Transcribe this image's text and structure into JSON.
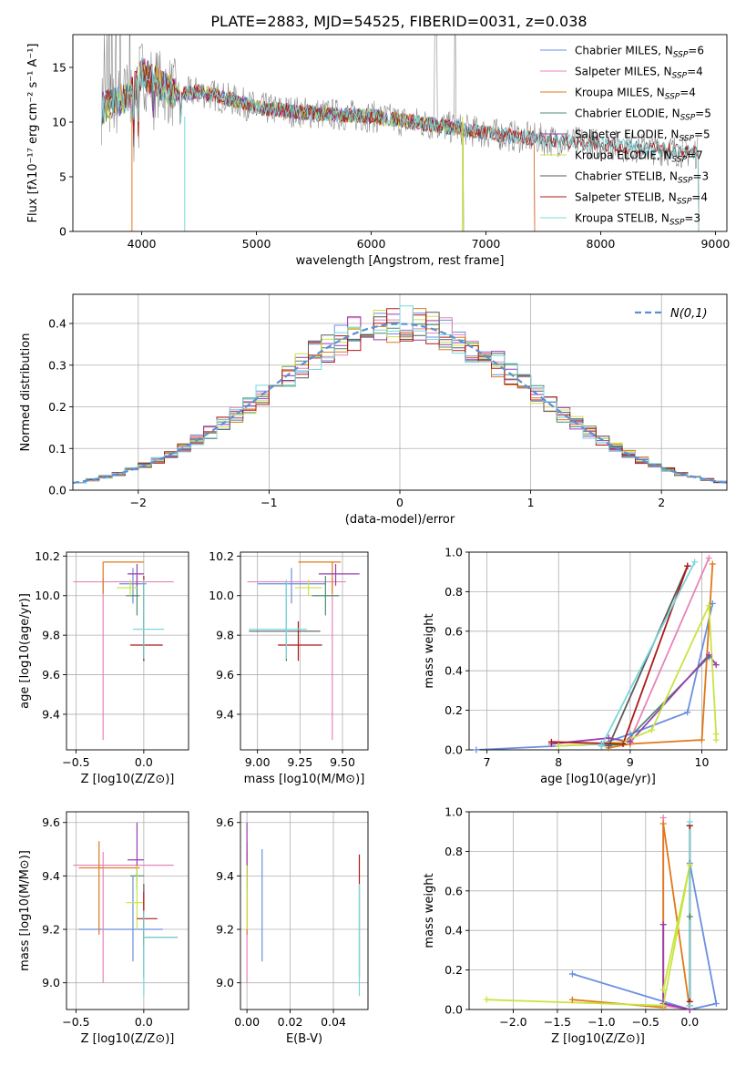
{
  "title": "PLATE=2883, MJD=54525, FIBERID=0031, z=0.038",
  "colors": {
    "Chabrier MILES": "#6b8fe0",
    "Salpeter MILES": "#e884b8",
    "Kroupa MILES": "#e07818",
    "Chabrier ELODIE": "#4c8c6c",
    "Salpeter ELODIE": "#9a3cb0",
    "Kroupa ELODIE": "#c8e440",
    "Chabrier STELIB": "#5a5a5a",
    "Salpeter STELIB": "#b01818",
    "Kroupa STELIB": "#78d8dc",
    "data": "#888888",
    "gaussian": "#5b8fd8",
    "grid": "#b0b0b0"
  },
  "chart_data": [
    {
      "id": "spectrum",
      "type": "line",
      "title": "PLATE=2883, MJD=54525, FIBERID=0031, z=0.038",
      "xlabel": "wavelength [Angstrom, rest frame]",
      "ylabel": "Flux [fλ10⁻¹⁷ erg cm⁻² s⁻¹ A⁻¹]",
      "xlim": [
        3400,
        9100
      ],
      "ylim": [
        0,
        18
      ],
      "xticks": [
        4000,
        5000,
        6000,
        7000,
        8000,
        9000
      ],
      "yticks": [
        0,
        5,
        10,
        15
      ],
      "grid": false,
      "legend_position": "top-right",
      "legend": [
        {
          "name": "Chabrier MILES",
          "nssp": "6"
        },
        {
          "name": "Salpeter MILES",
          "nssp": "4"
        },
        {
          "name": "Kroupa MILES",
          "nssp": "4"
        },
        {
          "name": "Chabrier ELODIE",
          "nssp": "5"
        },
        {
          "name": "Salpeter ELODIE",
          "nssp": "5"
        },
        {
          "name": "Kroupa ELODIE",
          "nssp": "7"
        },
        {
          "name": "Chabrier STELIB",
          "nssp": "3"
        },
        {
          "name": "Salpeter STELIB",
          "nssp": "4"
        },
        {
          "name": "Kroupa STELIB",
          "nssp": "3"
        }
      ],
      "continuum": [
        [
          3650,
          11.2
        ],
        [
          3900,
          12.5
        ],
        [
          4000,
          14.5
        ],
        [
          4100,
          13.8
        ],
        [
          4300,
          12.5
        ],
        [
          4500,
          12.8
        ],
        [
          4800,
          12.0
        ],
        [
          5000,
          11.3
        ],
        [
          5500,
          10.8
        ],
        [
          6000,
          10.5
        ],
        [
          6500,
          9.8
        ],
        [
          7000,
          9.0
        ],
        [
          7500,
          8.4
        ],
        [
          8000,
          8.0
        ],
        [
          8500,
          7.5
        ],
        [
          8850,
          7.2
        ]
      ],
      "model_ranges": {
        "Chabrier MILES": [
          3650,
          7420
        ],
        "Salpeter MILES": [
          3650,
          7420
        ],
        "Kroupa MILES": [
          3650,
          7420
        ],
        "Chabrier ELODIE": [
          3650,
          6800
        ],
        "Salpeter ELODIE": [
          3650,
          6800
        ],
        "Kroupa ELODIE": [
          3650,
          6800
        ],
        "Chabrier STELIB": [
          3650,
          8850
        ],
        "Salpeter STELIB": [
          3650,
          8850
        ],
        "Kroupa STELIB": [
          3650,
          8850
        ]
      }
    },
    {
      "id": "residuals",
      "type": "bar",
      "xlabel": "(data-model)/error",
      "ylabel": "Normed distribution",
      "xlim": [
        -2.5,
        2.5
      ],
      "ylim": [
        0,
        0.47
      ],
      "xticks": [
        -2,
        -1,
        0,
        1,
        2
      ],
      "yticks": [
        0.0,
        0.1,
        0.2,
        0.3,
        0.4
      ],
      "grid": true,
      "legend_position": "top-right",
      "legend": [
        {
          "name": "N(0,1)"
        }
      ],
      "bin_width": 0.1
    },
    {
      "id": "age_vs_Z",
      "type": "scatter",
      "xlabel": "Z [log10(Z/Z⊙)]",
      "ylabel": "age  [log10(age/yr)]",
      "xlim": [
        -0.57,
        0.33
      ],
      "ylim": [
        9.22,
        10.22
      ],
      "xticks": [
        -0.5,
        0.0
      ],
      "yticks": [
        9.4,
        9.6,
        9.8,
        10.0,
        10.2
      ],
      "grid": true,
      "points": [
        {
          "model": "Chabrier MILES",
          "x": -0.08,
          "y": 10.06,
          "xerr": [
            0.1,
            0.1
          ],
          "yerr": [
            0.1,
            0.08
          ]
        },
        {
          "model": "Salpeter MILES",
          "x": -0.3,
          "y": 10.07,
          "xerr": [
            0.22,
            0.52
          ],
          "yerr": [
            0.8,
            0.02
          ]
        },
        {
          "model": "Kroupa MILES",
          "x": -0.3,
          "y": 10.17,
          "xerr": [
            0.0,
            0.3
          ],
          "yerr": [
            0.16,
            0.0
          ]
        },
        {
          "model": "Chabrier ELODIE",
          "x": -0.05,
          "y": 10.0,
          "xerr": [
            0.08,
            0.02
          ],
          "yerr": [
            0.1,
            0.1
          ]
        },
        {
          "model": "Salpeter ELODIE",
          "x": -0.05,
          "y": 10.11,
          "xerr": [
            0.07,
            0.05
          ],
          "yerr": [
            0.06,
            0.05
          ]
        },
        {
          "model": "Kroupa ELODIE",
          "x": -0.1,
          "y": 10.04,
          "xerr": [
            0.1,
            0.05
          ],
          "yerr": [
            0.04,
            0.04
          ]
        },
        {
          "model": "Chabrier STELIB",
          "x": 0.0,
          "y": 9.82,
          "xerr": [
            0.0,
            0.0
          ],
          "yerr": [
            0.15,
            0.25
          ]
        },
        {
          "model": "Salpeter STELIB",
          "x": 0.0,
          "y": 9.75,
          "xerr": [
            0.1,
            0.14
          ],
          "yerr": [
            0.08,
            0.35
          ]
        },
        {
          "model": "Kroupa STELIB",
          "x": 0.0,
          "y": 9.83,
          "xerr": [
            0.08,
            0.15
          ],
          "yerr": [
            0.15,
            0.25
          ]
        }
      ]
    },
    {
      "id": "age_vs_mass",
      "type": "scatter",
      "xlabel": "mass [log10(M/M⊙)]",
      "ylabel": "",
      "xlim": [
        8.9,
        9.65
      ],
      "ylim": [
        9.22,
        10.22
      ],
      "xticks": [
        9.0,
        9.25,
        9.5
      ],
      "yticks": [
        9.4,
        9.6,
        9.8,
        10.0,
        10.2
      ],
      "grid": true,
      "points": [
        {
          "model": "Chabrier MILES",
          "x": 9.2,
          "y": 10.06,
          "xerr": [
            0.2,
            0.2
          ],
          "yerr": [
            0.1,
            0.08
          ]
        },
        {
          "model": "Salpeter MILES",
          "x": 9.44,
          "y": 10.07,
          "xerr": [
            0.5,
            0.08
          ],
          "yerr": [
            0.8,
            0.02
          ]
        },
        {
          "model": "Kroupa MILES",
          "x": 9.44,
          "y": 10.17,
          "xerr": [
            0.2,
            0.05
          ],
          "yerr": [
            0.16,
            0.0
          ]
        },
        {
          "model": "Chabrier ELODIE",
          "x": 9.4,
          "y": 10.0,
          "xerr": [
            0.08,
            0.08
          ],
          "yerr": [
            0.1,
            0.1
          ]
        },
        {
          "model": "Salpeter ELODIE",
          "x": 9.46,
          "y": 10.11,
          "xerr": [
            0.1,
            0.14
          ],
          "yerr": [
            0.06,
            0.05
          ]
        },
        {
          "model": "Kroupa ELODIE",
          "x": 9.3,
          "y": 10.04,
          "xerr": [
            0.08,
            0.08
          ],
          "yerr": [
            0.04,
            0.04
          ]
        },
        {
          "model": "Chabrier STELIB",
          "x": 9.17,
          "y": 9.82,
          "xerr": [
            0.22,
            0.2
          ],
          "yerr": [
            0.15,
            0.25
          ]
        },
        {
          "model": "Salpeter STELIB",
          "x": 9.24,
          "y": 9.75,
          "xerr": [
            0.12,
            0.14
          ],
          "yerr": [
            0.08,
            0.12
          ]
        },
        {
          "model": "Kroupa STELIB",
          "x": 9.17,
          "y": 9.83,
          "xerr": [
            0.22,
            0.12
          ],
          "yerr": [
            0.15,
            0.25
          ]
        }
      ]
    },
    {
      "id": "mass_weight_vs_age",
      "type": "line",
      "xlabel": "age  [log10(age/yr)]",
      "ylabel": "mass weight",
      "xlim": [
        6.75,
        10.35
      ],
      "ylim": [
        0,
        1.0
      ],
      "xticks": [
        7,
        8,
        9,
        10
      ],
      "yticks": [
        0.0,
        0.2,
        0.4,
        0.6,
        0.8,
        1.0
      ],
      "grid": true,
      "series": [
        {
          "model": "Chabrier MILES",
          "x": [
            6.85,
            8.6,
            9.0,
            9.8,
            10.15
          ],
          "y": [
            0.0,
            0.03,
            0.08,
            0.19,
            0.74
          ]
        },
        {
          "model": "Salpeter MILES",
          "x": [
            8.6,
            9.0,
            10.1
          ],
          "y": [
            0.02,
            0.05,
            0.97
          ]
        },
        {
          "model": "Kroupa MILES",
          "x": [
            8.7,
            9.0,
            10.0,
            10.15
          ],
          "y": [
            0.01,
            0.03,
            0.05,
            0.94
          ]
        },
        {
          "model": "Chabrier ELODIE",
          "x": [
            8.6,
            8.9,
            10.1
          ],
          "y": [
            0.02,
            0.03,
            0.47
          ]
        },
        {
          "model": "Salpeter ELODIE",
          "x": [
            7.9,
            8.7,
            9.0,
            10.1,
            10.2
          ],
          "y": [
            0.03,
            0.06,
            0.04,
            0.48,
            0.43
          ]
        },
        {
          "model": "Kroupa ELODIE",
          "x": [
            8.0,
            8.9,
            9.3,
            10.1,
            10.2,
            10.2
          ],
          "y": [
            0.02,
            0.04,
            0.1,
            0.73,
            0.08,
            0.05
          ]
        },
        {
          "model": "Chabrier STELIB",
          "x": [
            8.7,
            9.8
          ],
          "y": [
            0.02,
            0.93
          ]
        },
        {
          "model": "Salpeter STELIB",
          "x": [
            7.9,
            8.9,
            9.8
          ],
          "y": [
            0.04,
            0.03,
            0.93
          ]
        },
        {
          "model": "Kroupa STELIB",
          "x": [
            8.6,
            9.9
          ],
          "y": [
            0.02,
            0.95
          ]
        }
      ]
    },
    {
      "id": "mass_vs_Z",
      "type": "scatter",
      "xlabel": "Z [log10(Z/Z⊙)]",
      "ylabel": "mass [log10(M/M⊙)]",
      "xlim": [
        -0.57,
        0.33
      ],
      "ylim": [
        8.9,
        9.64
      ],
      "xticks": [
        -0.5,
        0.0
      ],
      "yticks": [
        9.0,
        9.2,
        9.4,
        9.6
      ],
      "grid": true,
      "points": [
        {
          "model": "Chabrier MILES",
          "x": -0.08,
          "y": 9.2,
          "xerr": [
            0.4,
            0.22
          ],
          "yerr": [
            0.12,
            0.2
          ]
        },
        {
          "model": "Salpeter MILES",
          "x": -0.3,
          "y": 9.44,
          "xerr": [
            0.22,
            0.52
          ],
          "yerr": [
            0.44,
            0.05
          ]
        },
        {
          "model": "Kroupa MILES",
          "x": -0.33,
          "y": 9.43,
          "xerr": [
            0.15,
            0.3
          ],
          "yerr": [
            0.25,
            0.1
          ]
        },
        {
          "model": "Chabrier ELODIE",
          "x": -0.05,
          "y": 9.4,
          "xerr": [
            0.05,
            0.05
          ],
          "yerr": [
            0.05,
            0.05
          ]
        },
        {
          "model": "Salpeter ELODIE",
          "x": -0.05,
          "y": 9.46,
          "xerr": [
            0.07,
            0.05
          ],
          "yerr": [
            0.08,
            0.14
          ]
        },
        {
          "model": "Kroupa ELODIE",
          "x": -0.05,
          "y": 9.3,
          "xerr": [
            0.08,
            0.05
          ],
          "yerr": [
            0.1,
            0.14
          ]
        },
        {
          "model": "Chabrier STELIB",
          "x": 0.0,
          "y": 9.17,
          "xerr": [
            0.0,
            0.25
          ],
          "yerr": [
            0.15,
            0.2
          ]
        },
        {
          "model": "Salpeter STELIB",
          "x": 0.0,
          "y": 9.24,
          "xerr": [
            0.05,
            0.1
          ],
          "yerr": [
            0.1,
            0.1
          ]
        },
        {
          "model": "Kroupa STELIB",
          "x": 0.0,
          "y": 9.17,
          "xerr": [
            0.0,
            0.25
          ],
          "yerr": [
            0.22,
            0.1
          ]
        }
      ]
    },
    {
      "id": "mass_vs_EBV",
      "type": "scatter",
      "xlabel": "E(B-V)",
      "ylabel": "",
      "xlim": [
        -0.003,
        0.056
      ],
      "ylim": [
        8.9,
        9.64
      ],
      "xticks": [
        0.0,
        0.02,
        0.04
      ],
      "yticks": [
        9.0,
        9.2,
        9.4,
        9.6
      ],
      "grid": true,
      "points": [
        {
          "model": "Chabrier MILES",
          "x": 0.007,
          "y": 9.2,
          "xerr": [
            0,
            0
          ],
          "yerr": [
            0.12,
            0.3
          ]
        },
        {
          "model": "Salpeter MILES",
          "x": 0.0,
          "y": 9.44,
          "xerr": [
            0,
            0
          ],
          "yerr": [
            0.44,
            0.05
          ]
        },
        {
          "model": "Kroupa MILES",
          "x": 0.0,
          "y": 9.43,
          "xerr": [
            0,
            0
          ],
          "yerr": [
            0.25,
            0.1
          ]
        },
        {
          "model": "Chabrier ELODIE",
          "x": 0.0,
          "y": 9.4,
          "xerr": [
            0,
            0
          ],
          "yerr": [
            0.05,
            0.05
          ]
        },
        {
          "model": "Salpeter ELODIE",
          "x": 0.0,
          "y": 9.46,
          "xerr": [
            0,
            0
          ],
          "yerr": [
            0.08,
            0.14
          ]
        },
        {
          "model": "Kroupa ELODIE",
          "x": 0.0,
          "y": 9.3,
          "xerr": [
            0,
            0
          ],
          "yerr": [
            0.1,
            0.14
          ]
        },
        {
          "model": "Chabrier STELIB",
          "x": 0.052,
          "y": 9.17,
          "xerr": [
            0,
            0
          ],
          "yerr": [
            0.15,
            0.2
          ]
        },
        {
          "model": "Salpeter STELIB",
          "x": 0.052,
          "y": 9.4,
          "xerr": [
            0,
            0
          ],
          "yerr": [
            0.03,
            0.08
          ]
        },
        {
          "model": "Kroupa STELIB",
          "x": 0.052,
          "y": 9.17,
          "xerr": [
            0,
            0
          ],
          "yerr": [
            0.22,
            0.2
          ]
        }
      ]
    },
    {
      "id": "mass_weight_vs_Z",
      "type": "line",
      "xlabel": "Z [log10(Z/Z⊙)]",
      "ylabel": "mass weight",
      "xlim": [
        -2.5,
        0.42
      ],
      "ylim": [
        0,
        1.0
      ],
      "xticks": [
        -2.0,
        -1.5,
        -1.0,
        -0.5,
        0.0
      ],
      "yticks": [
        0.0,
        0.2,
        0.4,
        0.6,
        0.8,
        1.0
      ],
      "grid": true,
      "series": [
        {
          "model": "Chabrier MILES",
          "x": [
            -1.33,
            0.0,
            0.3,
            0.0
          ],
          "y": [
            0.18,
            0.0,
            0.03,
            0.74
          ]
        },
        {
          "model": "Salpeter MILES",
          "x": [
            -0.3,
            -0.3,
            0.0
          ],
          "y": [
            0.97,
            0.02,
            0.0
          ]
        },
        {
          "model": "Kroupa MILES",
          "x": [
            -1.33,
            -0.3,
            -0.3,
            0.0
          ],
          "y": [
            0.05,
            0.01,
            0.94,
            0.0
          ]
        },
        {
          "model": "Chabrier ELODIE",
          "x": [
            0.0,
            0.0
          ],
          "y": [
            0.47,
            0.02
          ]
        },
        {
          "model": "Salpeter ELODIE",
          "x": [
            -0.3,
            -0.3,
            0.0
          ],
          "y": [
            0.43,
            0.03,
            0.0
          ]
        },
        {
          "model": "Kroupa ELODIE",
          "x": [
            -2.3,
            -0.3,
            0.0,
            -0.3
          ],
          "y": [
            0.05,
            0.02,
            0.73,
            0.1
          ]
        },
        {
          "model": "Chabrier STELIB",
          "x": [
            0.0,
            0.0
          ],
          "y": [
            0.93,
            0.02
          ]
        },
        {
          "model": "Salpeter STELIB",
          "x": [
            0.0,
            0.0
          ],
          "y": [
            0.93,
            0.04
          ]
        },
        {
          "model": "Kroupa STELIB",
          "x": [
            0.0,
            0.0
          ],
          "y": [
            0.95,
            0.02
          ]
        }
      ]
    }
  ]
}
